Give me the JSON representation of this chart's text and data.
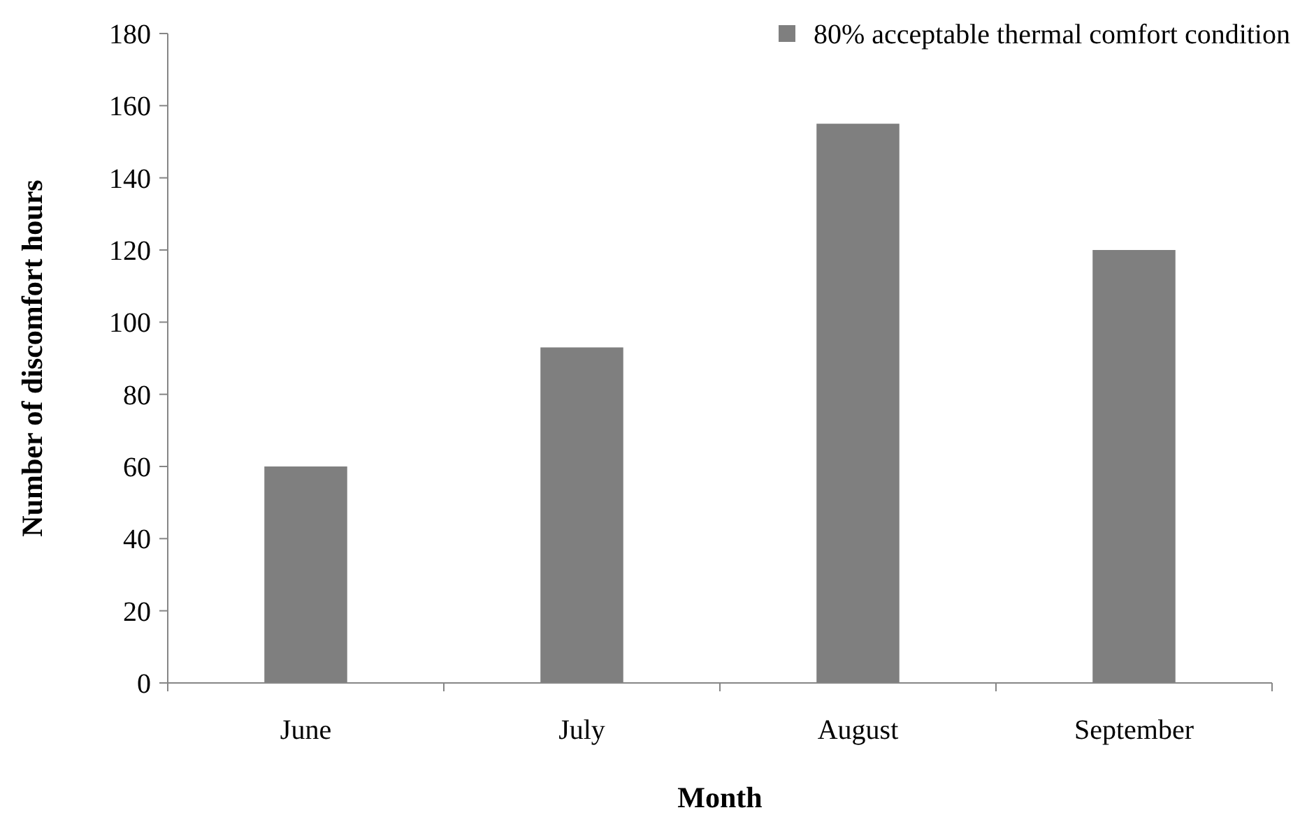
{
  "chart_data": {
    "type": "bar",
    "xlabel": "Month",
    "ylabel": "Number of discomfort hours",
    "categories": [
      "June",
      "July",
      "August",
      "September"
    ],
    "series": [
      {
        "name": "80% acceptable thermal comfort condition",
        "color": "#7f7f7f",
        "values": [
          60,
          93,
          155,
          120
        ]
      }
    ],
    "ylim": [
      0,
      180
    ],
    "yticks": [
      0,
      20,
      40,
      60,
      80,
      100,
      120,
      140,
      160,
      180
    ],
    "grid": false,
    "legend": "top right"
  }
}
